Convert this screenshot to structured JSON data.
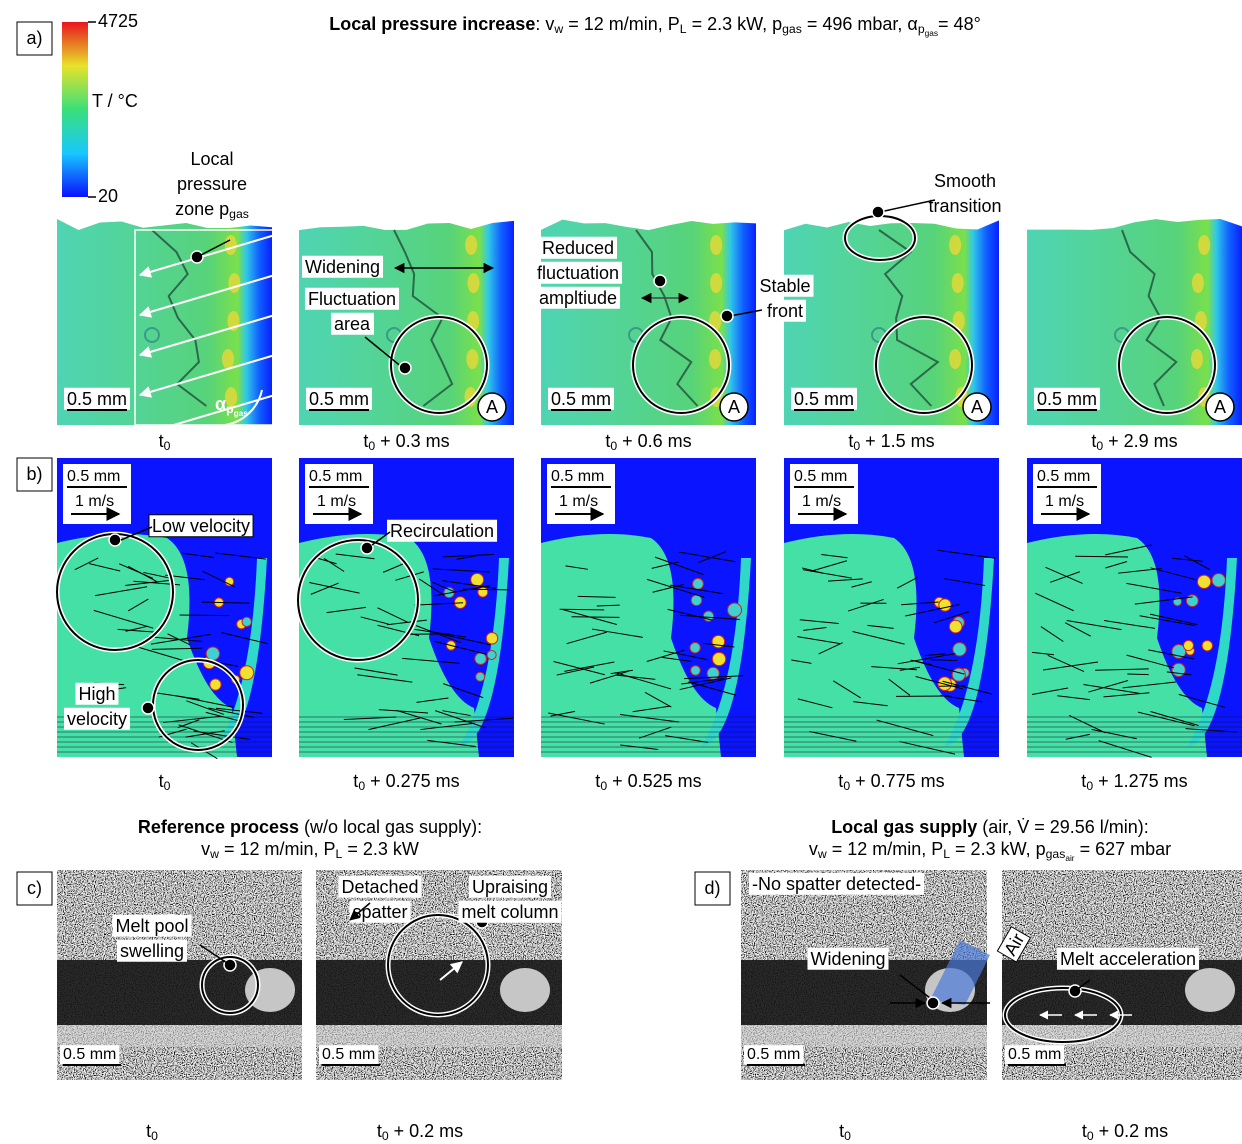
{
  "panel_a": {
    "label": "a)",
    "title": [
      {
        "text": "Local pressure increase",
        "bold": true
      },
      {
        "text": ": v"
      },
      {
        "text": "w",
        "level": 1
      },
      {
        "text": " = 12 m/min, P"
      },
      {
        "text": "L",
        "level": 1
      },
      {
        "text": " = 2.3 kW, p"
      },
      {
        "text": "gas",
        "level": 1
      },
      {
        "text": " = 496 mbar, α"
      },
      {
        "text": "p",
        "level": 1
      },
      {
        "text": "gas",
        "level": 2
      },
      {
        "text": "= 48°"
      }
    ],
    "colorbar": {
      "max": 4725,
      "min": 20,
      "label": "T / °C"
    },
    "frames": [
      {
        "caption": [
          {
            "text": "t"
          },
          {
            "text": "0",
            "level": 1
          }
        ],
        "scale": "0.5 mm"
      },
      {
        "caption": [
          {
            "text": "t"
          },
          {
            "text": "0",
            "level": 1
          },
          {
            "text": " + 0.3 ms"
          }
        ],
        "scale": "0.5 mm",
        "marker": "A"
      },
      {
        "caption": [
          {
            "text": "t"
          },
          {
            "text": "0",
            "level": 1
          },
          {
            "text": " + 0.6 ms"
          }
        ],
        "scale": "0.5 mm",
        "marker": "A"
      },
      {
        "caption": [
          {
            "text": "t"
          },
          {
            "text": "0",
            "level": 1
          },
          {
            "text": " + 1.5 ms"
          }
        ],
        "scale": "0.5 mm",
        "marker": "A"
      },
      {
        "caption": [
          {
            "text": "t"
          },
          {
            "text": "0",
            "level": 1
          },
          {
            "text": " + 2.9 ms"
          }
        ],
        "scale": "0.5 mm",
        "marker": "A"
      }
    ],
    "annotations": [
      {
        "lines": [
          "Local",
          "pressure",
          [
            {
              "text": "zone p"
            },
            {
              "text": "gas",
              "level": 1
            }
          ]
        ]
      },
      {
        "lines": [
          "Widening"
        ]
      },
      {
        "lines": [
          "Fluctuation",
          "area"
        ]
      },
      {
        "lines": [
          "Reduced",
          "fluctuation",
          "ampltiude"
        ]
      },
      {
        "lines": [
          "Stable",
          "front"
        ]
      },
      {
        "lines": [
          "Smooth",
          "transition"
        ]
      }
    ],
    "angle_label": [
      {
        "text": "α"
      },
      {
        "text": "p",
        "level": 1
      },
      {
        "text": "gas",
        "level": 2
      }
    ]
  },
  "panel_b": {
    "label": "b)",
    "frames": [
      {
        "caption": [
          {
            "text": "t"
          },
          {
            "text": "0",
            "level": 1
          }
        ],
        "scale": "0.5 mm",
        "velocity": "1 m/s"
      },
      {
        "caption": [
          {
            "text": "t"
          },
          {
            "text": "0",
            "level": 1
          },
          {
            "text": " + 0.275 ms"
          }
        ],
        "scale": "0.5 mm",
        "velocity": "1 m/s"
      },
      {
        "caption": [
          {
            "text": "t"
          },
          {
            "text": "0",
            "level": 1
          },
          {
            "text": " + 0.525 ms"
          }
        ],
        "scale": "0.5 mm",
        "velocity": "1 m/s"
      },
      {
        "caption": [
          {
            "text": "t"
          },
          {
            "text": "0",
            "level": 1
          },
          {
            "text": " + 0.775 ms"
          }
        ],
        "scale": "0.5 mm",
        "velocity": "1 m/s"
      },
      {
        "caption": [
          {
            "text": "t"
          },
          {
            "text": "0",
            "level": 1
          },
          {
            "text": " + 1.275 ms"
          }
        ],
        "scale": "0.5 mm",
        "velocity": "1 m/s"
      }
    ],
    "annotations": [
      {
        "lines": [
          "Low velocity"
        ]
      },
      {
        "lines": [
          "High",
          "velocity"
        ]
      },
      {
        "lines": [
          "Recirculation"
        ]
      }
    ]
  },
  "panel_c": {
    "label": "c)",
    "title": [
      [
        {
          "text": "Reference process",
          "bold": true
        },
        {
          "text": " (w/o local gas supply):"
        }
      ],
      [
        {
          "text": "v"
        },
        {
          "text": "w",
          "level": 1
        },
        {
          "text": " = 12 m/min, P"
        },
        {
          "text": "L",
          "level": 1
        },
        {
          "text": " = 2.3 kW"
        }
      ]
    ],
    "frames": [
      {
        "caption": [
          {
            "text": "t"
          },
          {
            "text": "0",
            "level": 1
          }
        ],
        "scale": "0.5 mm"
      },
      {
        "caption": [
          {
            "text": "t"
          },
          {
            "text": "0",
            "level": 1
          },
          {
            "text": " + 0.2 ms"
          }
        ],
        "scale": "0.5 mm"
      }
    ],
    "annotations": [
      {
        "lines": [
          "Melt pool",
          "swelling"
        ]
      },
      {
        "lines": [
          "Detached",
          "spatter"
        ]
      },
      {
        "lines": [
          "Upraising",
          "melt column"
        ]
      }
    ]
  },
  "panel_d": {
    "label": "d)",
    "title": [
      [
        {
          "text": "Local gas supply",
          "bold": true
        },
        {
          "text": " (air, V̇ = 29.56 l/min):"
        }
      ],
      [
        {
          "text": "v"
        },
        {
          "text": "w",
          "level": 1
        },
        {
          "text": " = 12 m/min, P"
        },
        {
          "text": "L",
          "level": 1
        },
        {
          "text": " = 2.3 kW, p"
        },
        {
          "text": "gas",
          "level": 1
        },
        {
          "text": "air",
          "level": 2
        },
        {
          "text": " = 627 mbar"
        }
      ]
    ],
    "frames": [
      {
        "caption": [
          {
            "text": "t"
          },
          {
            "text": "0",
            "level": 1
          }
        ],
        "scale": "0.5 mm"
      },
      {
        "caption": [
          {
            "text": "t"
          },
          {
            "text": "0",
            "level": 1
          },
          {
            "text": " + 0.2 ms"
          }
        ],
        "scale": "0.5 mm"
      }
    ],
    "annotations": [
      {
        "lines": [
          "-No spatter detected-"
        ]
      },
      {
        "lines": [
          "Widening"
        ]
      },
      {
        "lines": [
          "Air"
        ]
      },
      {
        "lines": [
          "Melt acceleration"
        ]
      }
    ]
  }
}
